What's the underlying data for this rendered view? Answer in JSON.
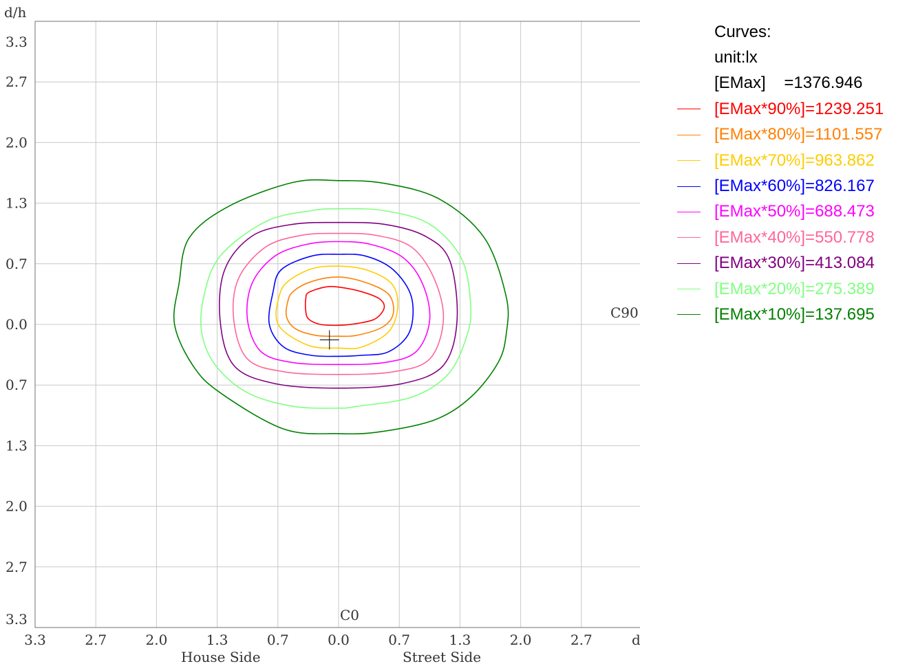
{
  "chart_data": {
    "type": "contour",
    "axis_unit_label": "d/h",
    "x_ticks": [
      "3.3",
      "2.7",
      "2.0",
      "1.3",
      "0.7",
      "0.0",
      "0.7",
      "1.3",
      "2.0",
      "2.7"
    ],
    "y_ticks": [
      "3.3",
      "2.7",
      "2.0",
      "1.3",
      "0.7",
      "0.0",
      "0.7",
      "1.3",
      "2.0",
      "2.7",
      "3.3"
    ],
    "xrange": [
      -3.33,
      3.33
    ],
    "yrange": [
      -3.33,
      3.33
    ],
    "grid": true,
    "x_side_labels": {
      "left": "House Side",
      "right": "Street Side"
    },
    "annotations": {
      "c0": "C0",
      "c90": "C90"
    },
    "center_marker": {
      "x": -0.1,
      "y": -0.17
    },
    "legend": {
      "position": "right",
      "header": [
        "Curves:",
        "unit:lx",
        "[EMax]    =1376.946"
      ],
      "entries": [
        {
          "label": "[EMax*90%]=1239.251",
          "color": "#ff0000"
        },
        {
          "label": "[EMax*80%]=1101.557",
          "color": "#ff8000"
        },
        {
          "label": "[EMax*70%]=963.862",
          "color": "#ffcc00"
        },
        {
          "label": "[EMax*60%]=826.167",
          "color": "#0000ff"
        },
        {
          "label": "[EMax*50%]=688.473",
          "color": "#ff00ff"
        },
        {
          "label": "[EMax*40%]=550.778",
          "color": "#ff6699"
        },
        {
          "label": "[EMax*30%]=413.084",
          "color": "#800080"
        },
        {
          "label": "[EMax*20%]=275.389",
          "color": "#80ff80"
        },
        {
          "label": "[EMax*10%]=137.695",
          "color": "#008000"
        }
      ]
    },
    "series": [
      {
        "color": "#ff0000",
        "points": [
          [
            -0.33,
            0.35
          ],
          [
            -0.15,
            0.41
          ],
          [
            0.0,
            0.41
          ],
          [
            0.25,
            0.36
          ],
          [
            0.45,
            0.28
          ],
          [
            0.5,
            0.18
          ],
          [
            0.4,
            0.06
          ],
          [
            0.2,
            0.01
          ],
          [
            0.0,
            -0.01
          ],
          [
            -0.2,
            0.0
          ],
          [
            -0.33,
            0.06
          ],
          [
            -0.36,
            0.15
          ],
          [
            -0.36,
            0.28
          ]
        ]
      },
      {
        "color": "#ff8000",
        "points": [
          [
            -0.5,
            0.36
          ],
          [
            -0.3,
            0.47
          ],
          [
            0.0,
            0.52
          ],
          [
            0.3,
            0.46
          ],
          [
            0.55,
            0.33
          ],
          [
            0.6,
            0.12
          ],
          [
            0.48,
            -0.03
          ],
          [
            0.2,
            -0.12
          ],
          [
            0.0,
            -0.13
          ],
          [
            -0.25,
            -0.12
          ],
          [
            -0.47,
            -0.05
          ],
          [
            -0.57,
            0.08
          ],
          [
            -0.56,
            0.24
          ]
        ]
      },
      {
        "color": "#ffcc00",
        "points": [
          [
            -0.57,
            0.46
          ],
          [
            -0.3,
            0.61
          ],
          [
            0.0,
            0.64
          ],
          [
            0.3,
            0.6
          ],
          [
            0.58,
            0.45
          ],
          [
            0.65,
            0.2
          ],
          [
            0.55,
            -0.08
          ],
          [
            0.25,
            -0.25
          ],
          [
            0.0,
            -0.26
          ],
          [
            -0.3,
            -0.24
          ],
          [
            -0.57,
            -0.1
          ],
          [
            -0.68,
            0.05
          ],
          [
            -0.66,
            0.28
          ]
        ]
      },
      {
        "color": "#0000ff",
        "points": [
          [
            -0.63,
            0.6
          ],
          [
            -0.3,
            0.75
          ],
          [
            0.0,
            0.77
          ],
          [
            0.3,
            0.75
          ],
          [
            0.6,
            0.6
          ],
          [
            0.8,
            0.3
          ],
          [
            0.78,
            -0.08
          ],
          [
            0.55,
            -0.3
          ],
          [
            0.25,
            -0.34
          ],
          [
            0.0,
            -0.35
          ],
          [
            -0.3,
            -0.34
          ],
          [
            -0.6,
            -0.25
          ],
          [
            -0.76,
            0.0
          ],
          [
            -0.72,
            0.35
          ]
        ]
      },
      {
        "color": "#ff00ff",
        "points": [
          [
            -0.7,
            0.75
          ],
          [
            -0.35,
            0.88
          ],
          [
            0.0,
            0.91
          ],
          [
            0.35,
            0.88
          ],
          [
            0.7,
            0.74
          ],
          [
            0.92,
            0.45
          ],
          [
            1.0,
            0.05
          ],
          [
            0.85,
            -0.3
          ],
          [
            0.5,
            -0.42
          ],
          [
            0.0,
            -0.44
          ],
          [
            -0.5,
            -0.42
          ],
          [
            -0.85,
            -0.3
          ],
          [
            -1.0,
            0.05
          ],
          [
            -0.95,
            0.45
          ]
        ]
      },
      {
        "color": "#ff6699",
        "points": [
          [
            -0.8,
            0.85
          ],
          [
            -0.4,
            0.98
          ],
          [
            0.0,
            1.0
          ],
          [
            0.4,
            0.98
          ],
          [
            0.8,
            0.85
          ],
          [
            1.05,
            0.5
          ],
          [
            1.15,
            0.05
          ],
          [
            1.0,
            -0.38
          ],
          [
            0.6,
            -0.52
          ],
          [
            0.0,
            -0.55
          ],
          [
            -0.6,
            -0.52
          ],
          [
            -1.0,
            -0.38
          ],
          [
            -1.15,
            0.05
          ],
          [
            -1.1,
            0.5
          ]
        ]
      },
      {
        "color": "#800080",
        "points": [
          [
            -0.95,
            0.97
          ],
          [
            -0.5,
            1.1
          ],
          [
            0.0,
            1.12
          ],
          [
            0.5,
            1.1
          ],
          [
            0.95,
            0.97
          ],
          [
            1.22,
            0.7
          ],
          [
            1.3,
            0.05
          ],
          [
            1.15,
            -0.45
          ],
          [
            0.7,
            -0.65
          ],
          [
            0.0,
            -0.7
          ],
          [
            -0.7,
            -0.65
          ],
          [
            -1.15,
            -0.45
          ],
          [
            -1.3,
            0.05
          ],
          [
            -1.25,
            0.6
          ]
        ]
      },
      {
        "color": "#80ff80",
        "points": [
          [
            -1.3,
            0.75
          ],
          [
            -0.8,
            1.13
          ],
          [
            -0.3,
            1.25
          ],
          [
            0.0,
            1.27
          ],
          [
            0.5,
            1.25
          ],
          [
            1.0,
            1.1
          ],
          [
            1.35,
            0.72
          ],
          [
            1.45,
            0.2
          ],
          [
            1.4,
            -0.15
          ],
          [
            1.2,
            -0.55
          ],
          [
            0.8,
            -0.8
          ],
          [
            0.2,
            -0.9
          ],
          [
            0.0,
            -0.92
          ],
          [
            -0.5,
            -0.9
          ],
          [
            -1.0,
            -0.75
          ],
          [
            -1.35,
            -0.45
          ],
          [
            -1.5,
            -0.1
          ],
          [
            -1.48,
            0.3
          ]
        ]
      },
      {
        "color": "#008000",
        "points": [
          [
            -1.64,
            0.95
          ],
          [
            -1.2,
            1.3
          ],
          [
            -0.5,
            1.56
          ],
          [
            0.0,
            1.58
          ],
          [
            0.5,
            1.55
          ],
          [
            1.1,
            1.38
          ],
          [
            1.6,
            0.95
          ],
          [
            1.84,
            0.3
          ],
          [
            1.84,
            -0.1
          ],
          [
            1.75,
            -0.42
          ],
          [
            1.45,
            -0.8
          ],
          [
            1.05,
            -1.05
          ],
          [
            0.45,
            -1.18
          ],
          [
            0.0,
            -1.2
          ],
          [
            -0.6,
            -1.15
          ],
          [
            -1.3,
            -0.75
          ],
          [
            -1.6,
            -0.45
          ],
          [
            -1.8,
            0.0
          ],
          [
            -1.75,
            0.45
          ]
        ]
      }
    ]
  }
}
